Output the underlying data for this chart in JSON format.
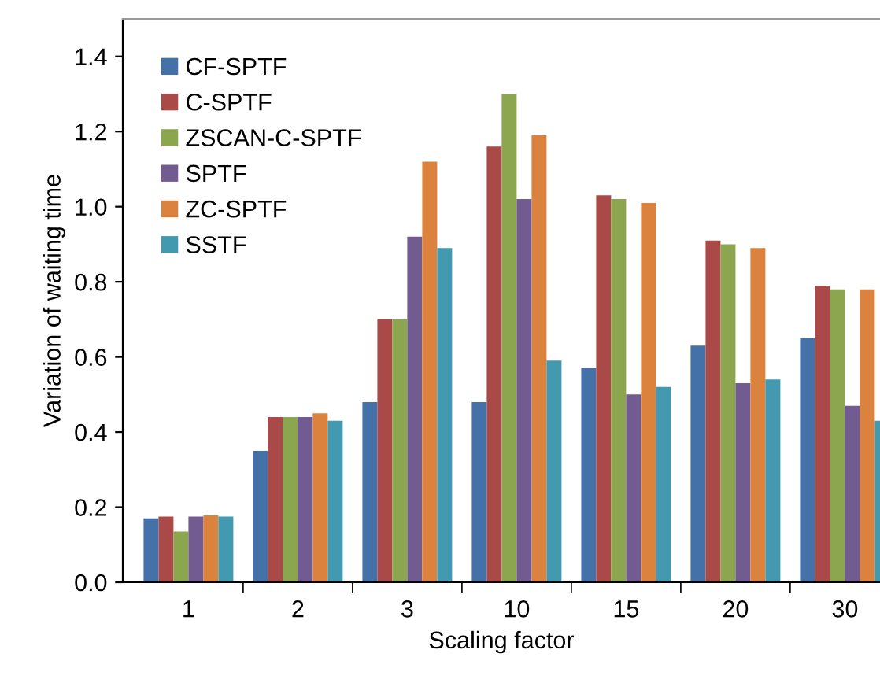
{
  "chart_data": {
    "type": "bar",
    "xlabel": "Scaling factor",
    "ylabel": "Variation of waiting time",
    "categories": [
      "1",
      "2",
      "3",
      "10",
      "15",
      "20",
      "30"
    ],
    "series": [
      {
        "name": "CF-SPTF",
        "color": "#4472a8",
        "values": [
          0.17,
          0.35,
          0.48,
          0.48,
          0.57,
          0.63,
          0.65
        ]
      },
      {
        "name": "C-SPTF",
        "color": "#a94a48",
        "values": [
          0.175,
          0.44,
          0.7,
          1.16,
          1.03,
          0.91,
          0.79
        ]
      },
      {
        "name": "ZSCAN-C-SPTF",
        "color": "#8ba64e",
        "values": [
          0.135,
          0.44,
          0.7,
          1.3,
          1.02,
          0.9,
          0.78
        ]
      },
      {
        "name": "SPTF",
        "color": "#725b91",
        "values": [
          0.175,
          0.44,
          0.92,
          1.02,
          0.5,
          0.53,
          0.47
        ]
      },
      {
        "name": "ZC-SPTF",
        "color": "#db833e",
        "values": [
          0.178,
          0.45,
          1.12,
          1.19,
          1.01,
          0.89,
          0.78
        ]
      },
      {
        "name": "SSTF",
        "color": "#4299b0",
        "values": [
          0.175,
          0.43,
          0.89,
          0.59,
          0.52,
          0.54,
          0.43
        ]
      }
    ],
    "ylim": [
      0,
      1.5
    ],
    "yticks": [
      {
        "value": 0,
        "label": "0.0"
      },
      0.2,
      0.4,
      0.6,
      0.8,
      {
        "value": 1,
        "label": "1.0"
      },
      1.2,
      1.4
    ],
    "legend": "top left",
    "grid": false
  }
}
